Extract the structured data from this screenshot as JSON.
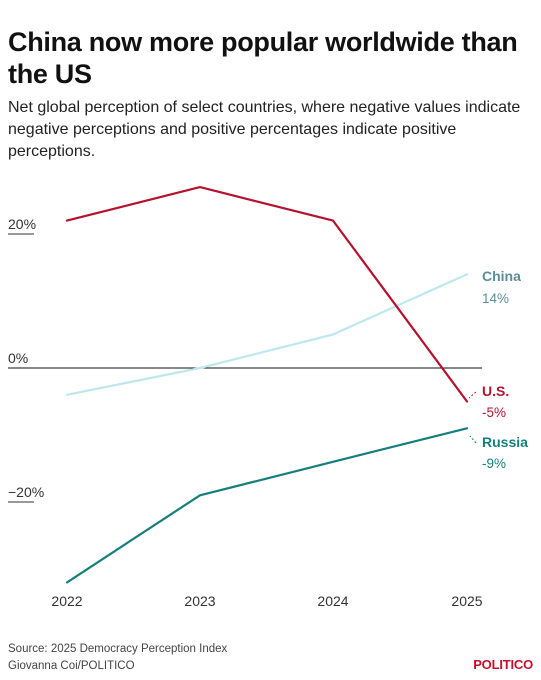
{
  "title": "China now more popular worldwide than the US",
  "subtitle": "Net global perception of select countries, where negative values indicate negative perceptions and positive percentages indicate positive perceptions.",
  "source": "Source: 2025 Democracy Perception Index",
  "credit": "Giovanna Coi/POLITICO",
  "brand": "POLITICO",
  "chart_data": {
    "type": "line",
    "x": [
      "2022",
      "2023",
      "2024",
      "2025"
    ],
    "ylim": [
      -33,
      27
    ],
    "yticks": [
      {
        "value": 20,
        "label": "20%"
      },
      {
        "value": 0,
        "label": "0%"
      },
      {
        "value": -20,
        "label": "−20%"
      }
    ],
    "series": [
      {
        "name": "U.S.",
        "values": [
          22,
          27,
          22,
          -5
        ],
        "end_label": "-5%",
        "color": "#b5122e"
      },
      {
        "name": "China",
        "values": [
          -4,
          0,
          5,
          14
        ],
        "end_label": "14%",
        "color": "#bde8ef",
        "label_color": "#5a8f98"
      },
      {
        "name": "Russia",
        "values": [
          -32,
          -19,
          -14,
          -9
        ],
        "end_label": "-9%",
        "color": "#167f7c"
      }
    ],
    "grid": false,
    "legend": "end-labels"
  }
}
